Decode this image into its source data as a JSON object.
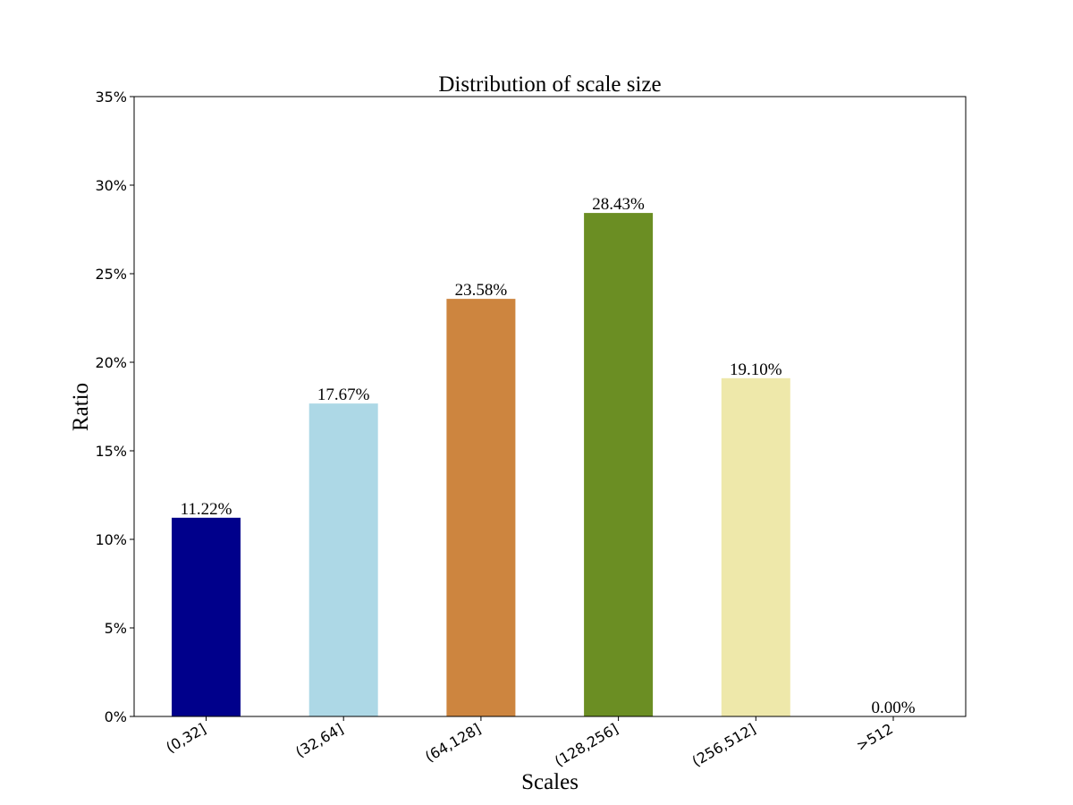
{
  "chart_data": {
    "type": "bar",
    "title": "Distribution of scale size",
    "xlabel": "Scales",
    "ylabel": "Ratio",
    "categories": [
      "(0,32]",
      "(32,64]",
      "(64,128]",
      "(128,256]",
      "(256,512]",
      ">512"
    ],
    "values": [
      11.22,
      17.67,
      23.58,
      28.43,
      19.1,
      0.0
    ],
    "data_labels": [
      "11.22%",
      "17.67%",
      "23.58%",
      "28.43%",
      "19.10%",
      "0.00%"
    ],
    "colors": [
      "#00008b",
      "#add8e6",
      "#cd853f",
      "#6b8e23",
      "#eee8aa",
      "#ffffff"
    ],
    "ylim": [
      0,
      35
    ],
    "yticks": [
      0,
      5,
      10,
      15,
      20,
      25,
      30,
      35
    ],
    "ytick_labels": [
      "0%",
      "5%",
      "10%",
      "15%",
      "20%",
      "25%",
      "30%",
      "35%"
    ],
    "grid": false,
    "legend": "none"
  }
}
